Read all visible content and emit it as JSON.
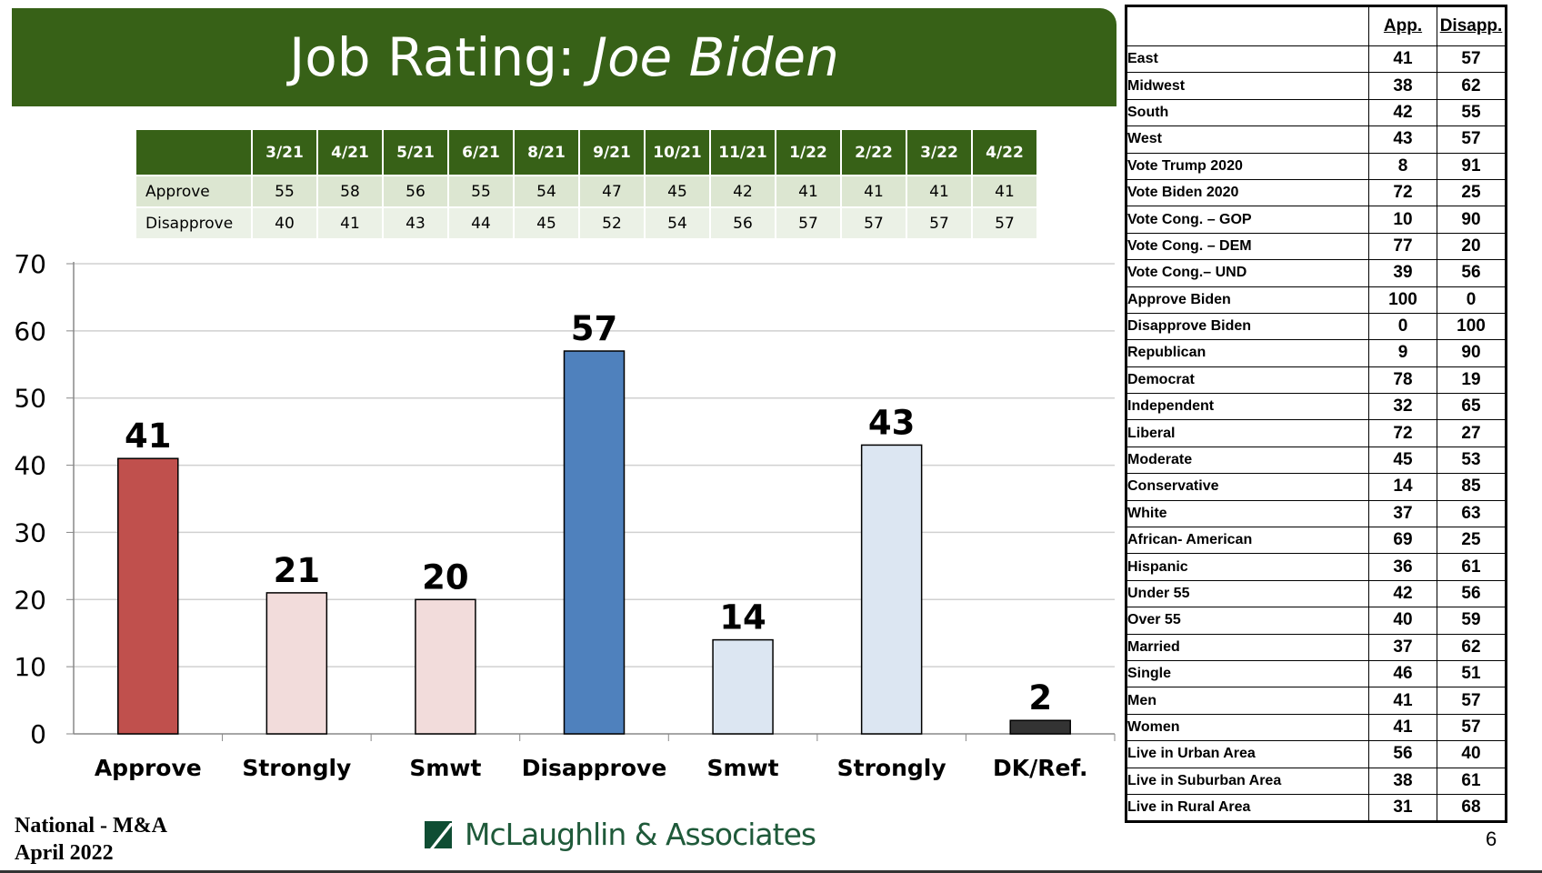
{
  "header": {
    "title_plain": "Job Rating:",
    "title_italic": "Joe Biden"
  },
  "trend_table": {
    "columns": [
      "3/21",
      "4/21",
      "5/21",
      "6/21",
      "8/21",
      "9/21",
      "10/21",
      "11/21",
      "1/22",
      "2/22",
      "3/22",
      "4/22"
    ],
    "rows": [
      {
        "label": "Approve",
        "values": [
          "55",
          "58",
          "56",
          "55",
          "54",
          "47",
          "45",
          "42",
          "41",
          "41",
          "41",
          "41"
        ]
      },
      {
        "label": "Disapprove",
        "values": [
          "40",
          "41",
          "43",
          "44",
          "45",
          "52",
          "54",
          "56",
          "57",
          "57",
          "57",
          "57"
        ]
      }
    ]
  },
  "chart_data": {
    "type": "bar",
    "categories": [
      "Approve",
      "Strongly",
      "Smwt",
      "Disapprove",
      "Smwt",
      "Strongly",
      "DK/Ref."
    ],
    "values": [
      41,
      21,
      20,
      57,
      14,
      43,
      2
    ],
    "colors": [
      "#c0504d",
      "#f2dcdb",
      "#f2dcdb",
      "#4f81bd",
      "#dce6f2",
      "#dce6f2",
      "#333333"
    ],
    "ylim": [
      0,
      70
    ],
    "yticks": [
      0,
      10,
      20,
      30,
      40,
      50,
      60,
      70
    ],
    "grid": true,
    "xlabel": "",
    "ylabel": "",
    "title": ""
  },
  "demo_table": {
    "headers": [
      "App.",
      "Disapp."
    ],
    "rows": [
      [
        "East",
        "41",
        "57"
      ],
      [
        "Midwest",
        "38",
        "62"
      ],
      [
        "South",
        "42",
        "55"
      ],
      [
        "West",
        "43",
        "57"
      ],
      [
        "Vote Trump 2020",
        "8",
        "91"
      ],
      [
        "Vote Biden 2020",
        "72",
        "25"
      ],
      [
        "Vote Cong. – GOP",
        "10",
        "90"
      ],
      [
        "Vote Cong. – DEM",
        "77",
        "20"
      ],
      [
        "Vote Cong.– UND",
        "39",
        "56"
      ],
      [
        "Approve Biden",
        "100",
        "0"
      ],
      [
        "Disapprove Biden",
        "0",
        "100"
      ],
      [
        "Republican",
        "9",
        "90"
      ],
      [
        "Democrat",
        "78",
        "19"
      ],
      [
        "Independent",
        "32",
        "65"
      ],
      [
        "Liberal",
        "72",
        "27"
      ],
      [
        "Moderate",
        "45",
        "53"
      ],
      [
        "Conservative",
        "14",
        "85"
      ],
      [
        "White",
        "37",
        "63"
      ],
      [
        "African- American",
        "69",
        "25"
      ],
      [
        "Hispanic",
        "36",
        "61"
      ],
      [
        "Under 55",
        "42",
        "56"
      ],
      [
        "Over 55",
        "40",
        "59"
      ],
      [
        "Married",
        "37",
        "62"
      ],
      [
        "Single",
        "46",
        "51"
      ],
      [
        "Men",
        "41",
        "57"
      ],
      [
        "Women",
        "41",
        "57"
      ],
      [
        "Live in Urban Area",
        "56",
        "40"
      ],
      [
        "Live in Suburban Area",
        "38",
        "61"
      ],
      [
        "Live in Rural Area",
        "31",
        "68"
      ]
    ]
  },
  "footer": {
    "line1": "National - M&A",
    "line2": "April 2022",
    "logo_text": "McLaughlin & Associates",
    "page": "6"
  }
}
